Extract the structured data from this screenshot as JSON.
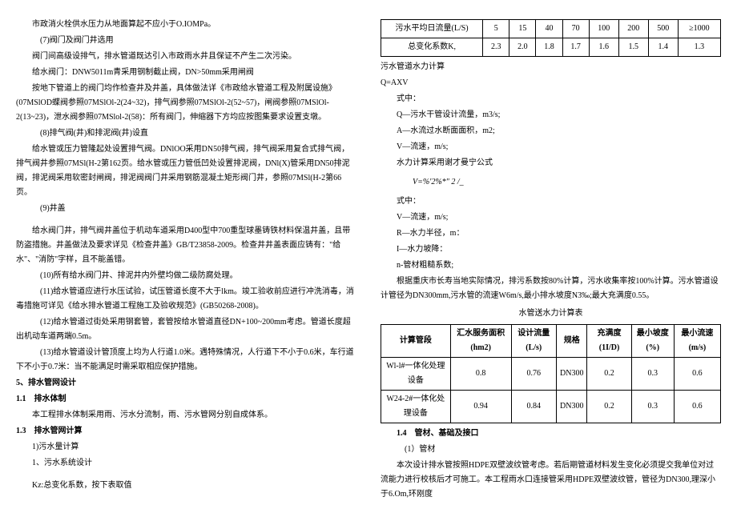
{
  "left": {
    "p1": "市政消火栓供水压力从地面算起不应小于O.IOMPa。",
    "h7": "(7)阀门及阀门井选用",
    "p2": "阀门间高级设排气，排水管道既达引入市政雨水井且保证不产生二次污染。",
    "p3": "给水阀门：DNW5011m青采用钢制截止阀，DN>50mm采用闸阀",
    "p4": "按地下管道上的阀门均作检查井及井盖，具体做法详《市政给水管道工程及附属设施》(07MSlOD蝶阀参照07MSlOl-2(24~32)，排气阀参照07MSlOl-2(52~57)，闸阀参照07MSlOl-2(13~23)，泄水阀参照07MSlol-2(58)：所有阀门，伸缩器下方均应按图集要求设置支墩。",
    "h8": "(8)排气阀(井)和排泥阀(井)设直",
    "p5": "给水管或压力管隆起处设置排气阀。DNlOO采用DN50排气阀，排气阀采用复合式排气阀，排气阀井参照07MSl(H-2第162页。给水管或压力管低凹处设置排泥阀，DNl(X)管采用DN50排泥阀，排泥阀采用软密封闸阀，排泥阀阀门井采用钢筋混凝土矩形阀门井，参照07MSl(H-2第66页。",
    "h9": "(9)井盖",
    "p6": "给水阀门井，排气阀井盖位于机动车道采用D400型中700重型球墨铸铁材料保温井盖，且带防盗措施。井盖做法及要求详见《检查井盖》GB/T23858-2009。检查井井盖表面应铸有：\"给水\"、\"消防\"字样，且不能盖错。",
    "h10": "(10)所有给水阀门井、排泥井内外壁均做二级防腐处理。",
    "h11": "(11)给水管道应进行水压试验，试压管道长度不大于lkm。竣工验收前应进行冲洗消毒，消毒措施可详见《给水排水管道工程施工及验收规范》(GB50268-2008)。",
    "h12": "(12)给水管道过街处采用钢套管，套管按给水管道直径DN+100~200mm考虑。管道长度超出机动车道两端0.5m。",
    "h13": "(13)给水管道设计管顶度上均为人行道1.0米。遇特殊情况，人行道下不小于0.6米，车行道下不小于0.7米：当不能满足时需采取相应保护措施。",
    "s5": "5、排水管网设计",
    "s11": "1.1　排水体制",
    "p7": "本工程排水体制采用雨、污水分流制，雨、污水管网分别自成体系。",
    "s13": "1.3　排水管网计算",
    "p8": "1)污水量计算",
    "p9": "1、污水系统设计",
    "p10": "Kz:总变化系数，按下表取值"
  },
  "right": {
    "table1": {
      "headers": [
        "污水平均日流量(L/S)",
        "5",
        "15",
        "40",
        "70",
        "100",
        "200",
        "500",
        "≥1000"
      ],
      "row": [
        "总变化系数K,",
        "2.3",
        "2.0",
        "1.8",
        "1.7",
        "1.6",
        "1.5",
        "1.4",
        "1.3"
      ]
    },
    "p1": "污水管道水力计算",
    "p2": "Q=AXV",
    "p3": "式中：",
    "p4": "Q—污水干管设计流量，m3/s;",
    "p5": "A—水流过水断面面积，m2;",
    "p6": "V—流速，m/s;",
    "p7": "水力计算采用谢才曼宁公式",
    "formula": "V=%'2%*\"     2      /_",
    "p8": "式中：",
    "p9": "V—流速，m/s;",
    "p10": "R—水力半径，m：",
    "p11": "I—水力坡降：",
    "p12": "n-管材粗糙系数;",
    "p13": "根据重庆市长寿当地实际情况，排污系数按80%计算，污水收集率按100%计算。污水管道设计管径为DN300mm,污水管的流速W6m/s,最小排水坡度N3‰;最大充满度0.55。",
    "table2title": "水管送水力计算表",
    "table2": {
      "headers": [
        "计算管段",
        "汇水服务面积(hm2)",
        "设计流量(L/s)",
        "规格",
        "充满度(1I/D)",
        "最小坡度(%)",
        "最小流速(m/s)"
      ],
      "rows": [
        [
          "Wl-l#一体化处理设备",
          "0.8",
          "0.76",
          "DN300",
          "0.2",
          "0.3",
          "0.6"
        ],
        [
          "W24-2#一体化处理设备",
          "0.94",
          "0.84",
          "DN300",
          "0.2",
          "0.3",
          "0.6"
        ]
      ]
    },
    "s14": "1.4　管材、基础及接口",
    "p14": "(1）管材",
    "p15": "本次设计排水管按照HDPE双壁波纹管考虑。若后期管道材料发生变化必须提交我单位对过流能力进行校核后才可施工。本工程雨水口连接管采用HDPE双壁波纹管，管径为DN300,理深小于6.Om,环刚度"
  }
}
